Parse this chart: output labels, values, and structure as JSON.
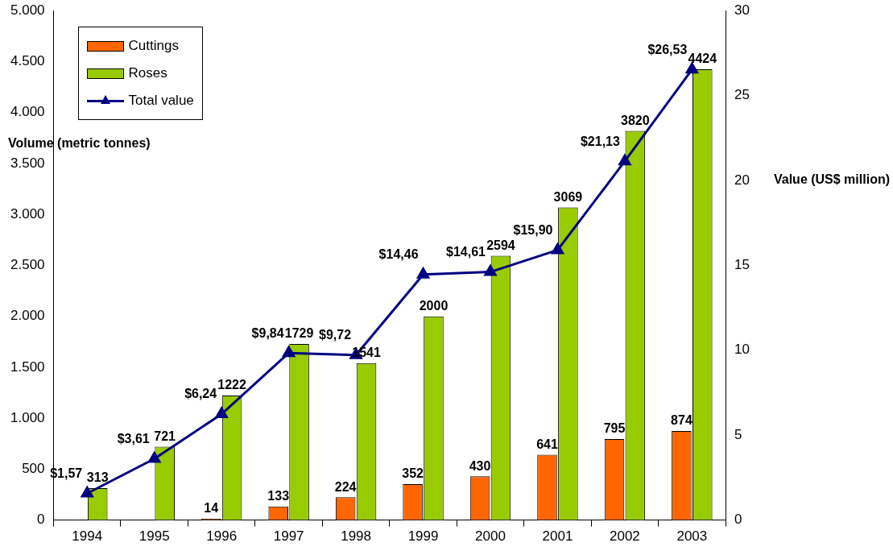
{
  "chart_data": {
    "type": "bar",
    "categories": [
      "1994",
      "1995",
      "1996",
      "1997",
      "1998",
      "1999",
      "2000",
      "2001",
      "2002",
      "2003"
    ],
    "ylabel": "Volume (metric tonnes)",
    "y2label": "Value (US$ million)",
    "series": [
      {
        "name": "Cuttings",
        "color": "#ff6600",
        "values": [
          null,
          null,
          14,
          133,
          224,
          352,
          430,
          641,
          795,
          874
        ],
        "value_labels": [
          null,
          null,
          "14",
          "133",
          "224",
          "352",
          "430",
          "641",
          "795",
          "874"
        ]
      },
      {
        "name": "Roses",
        "color": "#99cc00",
        "values": [
          313,
          721,
          1222,
          1729,
          1541,
          2000,
          2594,
          3069,
          3820,
          4424
        ],
        "value_labels": [
          "313",
          "721",
          "1222",
          "1729",
          "1541",
          "2000",
          "2594",
          "3069",
          "3820",
          "4424"
        ]
      },
      {
        "name": "Total value",
        "type": "line",
        "axis": "y2",
        "color": "#000080",
        "marker": "triangle",
        "values": [
          1.57,
          3.61,
          6.24,
          9.84,
          9.72,
          14.46,
          14.61,
          15.9,
          21.13,
          26.53
        ],
        "value_labels": [
          "$1,57",
          "$3,61",
          "$6,24",
          "$9,84",
          "$9,72",
          "$14,46",
          "$14,61",
          "$15,90",
          "$21,13",
          "$26,53"
        ]
      }
    ],
    "ylim": [
      0,
      5000
    ],
    "yticks": [
      0,
      500,
      {
        "value": 1000,
        "label": "1.000"
      },
      {
        "value": 1500,
        "label": "1.500"
      },
      {
        "value": 2000,
        "label": "2.000"
      },
      {
        "value": 2500,
        "label": "2.500"
      },
      {
        "value": 3000,
        "label": "3.000"
      },
      {
        "value": 3500,
        "label": "3.500"
      },
      {
        "value": 4000,
        "label": "4.000"
      },
      {
        "value": 4500,
        "label": "4.500"
      },
      {
        "value": 5000,
        "label": "5.000"
      }
    ],
    "y2lim": [
      0,
      30
    ],
    "y2ticks": [
      0,
      5,
      10,
      15,
      20,
      25,
      30
    ],
    "legend": "top left",
    "grid": false
  }
}
